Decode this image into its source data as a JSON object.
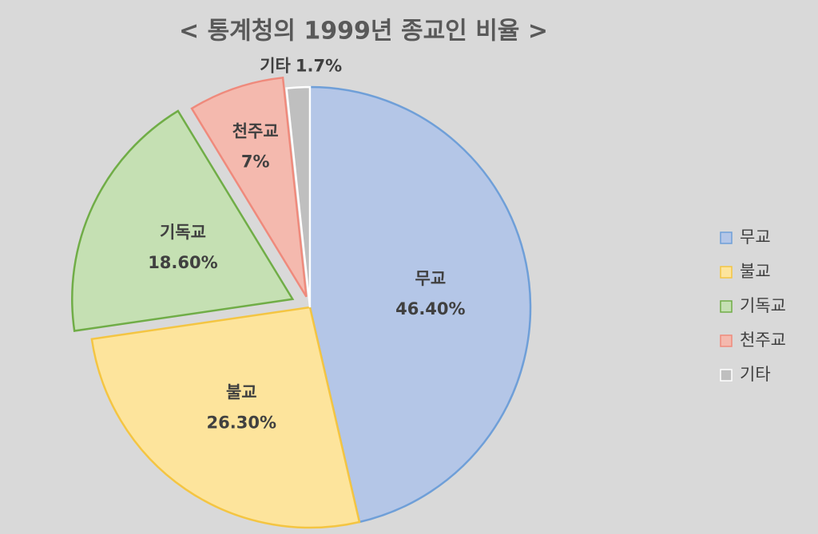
{
  "chart_data": {
    "type": "pie",
    "title": "< 통계청의 1999년 종교인 비율 >",
    "categories": [
      "무교",
      "불교",
      "기독교",
      "천주교",
      "기타"
    ],
    "values": [
      46.4,
      26.3,
      18.6,
      7,
      1.7
    ],
    "value_labels": [
      "46.40%",
      "26.30%",
      "18.60%",
      "7%",
      "1.7%"
    ],
    "colors": [
      "#b4c6e7",
      "#fde49c",
      "#c5e0b3",
      "#f4b9ae",
      "#bfbfbf"
    ],
    "edge_colors": [
      "#6f9fd8",
      "#f4c542",
      "#70ad47",
      "#ef8a7c",
      "#ffffff"
    ],
    "legend": "right"
  }
}
